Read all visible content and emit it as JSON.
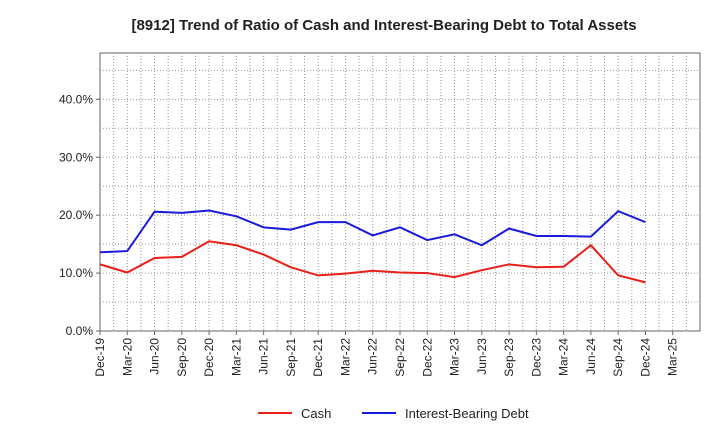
{
  "chart_data": {
    "type": "line",
    "title": "[8912]  Trend of Ratio of Cash and Interest-Bearing Debt to Total Assets",
    "xlabel": "",
    "ylabel": "",
    "x_ticks": [
      "Dec-19",
      "Mar-20",
      "Jun-20",
      "Sep-20",
      "Dec-20",
      "Mar-21",
      "Jun-21",
      "Sep-21",
      "Dec-21",
      "Mar-22",
      "Jun-22",
      "Sep-22",
      "Dec-22",
      "Mar-23",
      "Jun-23",
      "Sep-23",
      "Dec-23",
      "Mar-24",
      "Jun-24",
      "Sep-24",
      "Dec-24",
      "Mar-25"
    ],
    "y_ticks": [
      "0.0%",
      "10.0%",
      "20.0%",
      "30.0%",
      "40.0%"
    ],
    "ylim": [
      0,
      48
    ],
    "grid": true,
    "legend_position": "bottom",
    "series": [
      {
        "name": "Cash",
        "color": "#e8201b",
        "values": [
          11.5,
          10.1,
          12.6,
          12.8,
          15.5,
          14.8,
          13.2,
          11.0,
          9.6,
          9.9,
          10.4,
          10.1,
          10.0,
          9.3,
          10.5,
          11.5,
          11.0,
          11.1,
          14.8,
          9.6,
          8.4,
          null
        ]
      },
      {
        "name": "Interest-Bearing Debt",
        "color": "#1a1adb",
        "values": [
          13.6,
          13.8,
          20.6,
          20.4,
          20.8,
          19.8,
          17.9,
          17.5,
          18.8,
          18.8,
          16.5,
          17.9,
          15.7,
          16.7,
          14.8,
          17.7,
          16.4,
          16.4,
          16.3,
          20.7,
          18.8,
          null
        ]
      }
    ]
  }
}
